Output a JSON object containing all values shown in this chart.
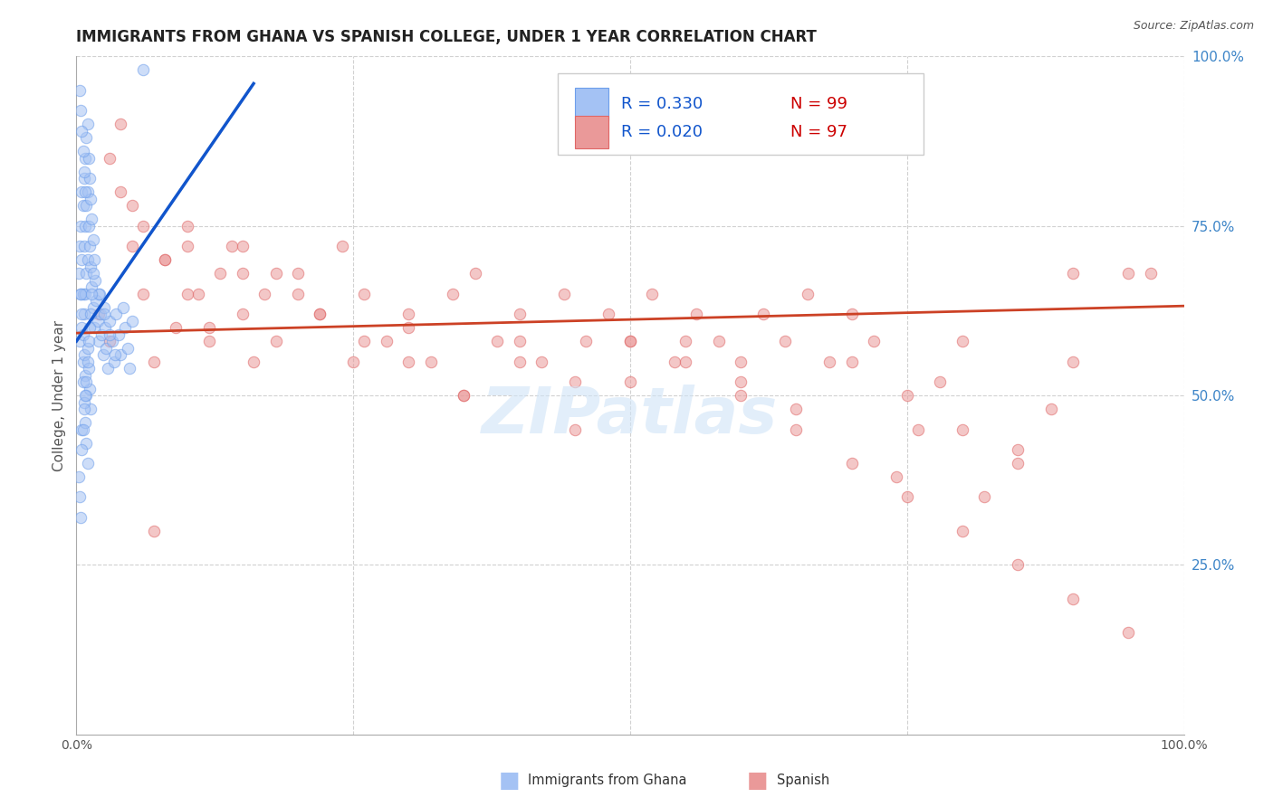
{
  "title": "IMMIGRANTS FROM GHANA VS SPANISH COLLEGE, UNDER 1 YEAR CORRELATION CHART",
  "source": "Source: ZipAtlas.com",
  "ylabel": "College, Under 1 year",
  "legend_blue_label": "Immigrants from Ghana",
  "legend_pink_label": "Spanish",
  "legend_R_blue": "R = 0.330",
  "legend_N_blue": "N = 99",
  "legend_R_pink": "R = 0.020",
  "legend_N_pink": "N = 97",
  "blue_color": "#a4c2f4",
  "blue_edge_color": "#6d9eeb",
  "pink_color": "#ea9999",
  "pink_edge_color": "#e06666",
  "blue_line_color": "#1155cc",
  "pink_line_color": "#cc4125",
  "dash_color": "#999999",
  "watermark": "ZIPatlas",
  "background_color": "#ffffff",
  "grid_color": "#cccccc",
  "title_fontsize": 12,
  "axis_fontsize": 10,
  "legend_fontsize": 13,
  "marker_size": 80,
  "marker_alpha": 0.55,
  "xmin": 0.0,
  "xmax": 1.0,
  "ymin": 0.0,
  "ymax": 1.0,
  "N_blue": 99,
  "N_pink": 97,
  "R_blue": 0.33,
  "R_pink": 0.02,
  "blue_x": [
    0.002,
    0.003,
    0.004,
    0.004,
    0.005,
    0.005,
    0.005,
    0.006,
    0.006,
    0.006,
    0.007,
    0.007,
    0.007,
    0.008,
    0.008,
    0.008,
    0.009,
    0.009,
    0.009,
    0.01,
    0.01,
    0.01,
    0.011,
    0.011,
    0.012,
    0.012,
    0.013,
    0.013,
    0.014,
    0.014,
    0.015,
    0.015,
    0.016,
    0.016,
    0.017,
    0.018,
    0.019,
    0.02,
    0.021,
    0.022,
    0.023,
    0.024,
    0.025,
    0.026,
    0.027,
    0.028,
    0.03,
    0.032,
    0.034,
    0.036,
    0.038,
    0.04,
    0.042,
    0.044,
    0.046,
    0.048,
    0.05,
    0.003,
    0.004,
    0.005,
    0.006,
    0.007,
    0.008,
    0.009,
    0.01,
    0.011,
    0.012,
    0.013,
    0.005,
    0.006,
    0.007,
    0.008,
    0.009,
    0.01,
    0.003,
    0.004,
    0.005,
    0.006,
    0.007,
    0.008,
    0.015,
    0.02,
    0.025,
    0.03,
    0.035,
    0.002,
    0.003,
    0.004,
    0.005,
    0.006,
    0.007,
    0.008,
    0.009,
    0.01,
    0.011,
    0.012,
    0.013,
    0.014,
    0.06
  ],
  "blue_y": [
    0.68,
    0.72,
    0.75,
    0.65,
    0.8,
    0.7,
    0.6,
    0.78,
    0.65,
    0.55,
    0.82,
    0.72,
    0.62,
    0.85,
    0.75,
    0.65,
    0.88,
    0.78,
    0.68,
    0.9,
    0.8,
    0.7,
    0.85,
    0.75,
    0.82,
    0.72,
    0.79,
    0.69,
    0.76,
    0.66,
    0.73,
    0.63,
    0.7,
    0.6,
    0.67,
    0.64,
    0.61,
    0.58,
    0.65,
    0.62,
    0.59,
    0.56,
    0.63,
    0.6,
    0.57,
    0.54,
    0.61,
    0.58,
    0.55,
    0.62,
    0.59,
    0.56,
    0.63,
    0.6,
    0.57,
    0.54,
    0.61,
    0.58,
    0.65,
    0.62,
    0.59,
    0.56,
    0.53,
    0.5,
    0.57,
    0.54,
    0.51,
    0.48,
    0.45,
    0.52,
    0.49,
    0.46,
    0.43,
    0.4,
    0.95,
    0.92,
    0.89,
    0.86,
    0.83,
    0.8,
    0.68,
    0.65,
    0.62,
    0.59,
    0.56,
    0.38,
    0.35,
    0.32,
    0.42,
    0.45,
    0.48,
    0.5,
    0.52,
    0.55,
    0.58,
    0.6,
    0.62,
    0.65,
    0.98
  ],
  "pink_x": [
    0.02,
    0.03,
    0.04,
    0.05,
    0.06,
    0.07,
    0.08,
    0.09,
    0.1,
    0.11,
    0.12,
    0.13,
    0.14,
    0.15,
    0.16,
    0.17,
    0.18,
    0.2,
    0.22,
    0.24,
    0.26,
    0.28,
    0.3,
    0.32,
    0.34,
    0.36,
    0.38,
    0.4,
    0.42,
    0.44,
    0.46,
    0.48,
    0.5,
    0.52,
    0.54,
    0.56,
    0.58,
    0.6,
    0.62,
    0.64,
    0.66,
    0.68,
    0.7,
    0.72,
    0.74,
    0.76,
    0.78,
    0.8,
    0.82,
    0.85,
    0.88,
    0.9,
    0.04,
    0.06,
    0.08,
    0.1,
    0.12,
    0.15,
    0.18,
    0.22,
    0.26,
    0.3,
    0.35,
    0.4,
    0.45,
    0.5,
    0.55,
    0.6,
    0.65,
    0.7,
    0.75,
    0.8,
    0.85,
    0.9,
    0.05,
    0.1,
    0.15,
    0.2,
    0.25,
    0.3,
    0.35,
    0.4,
    0.45,
    0.5,
    0.55,
    0.6,
    0.65,
    0.7,
    0.75,
    0.8,
    0.85,
    0.9,
    0.95,
    0.03,
    0.07,
    0.95,
    0.97
  ],
  "pink_y": [
    0.62,
    0.58,
    0.9,
    0.72,
    0.65,
    0.55,
    0.7,
    0.6,
    0.75,
    0.65,
    0.58,
    0.68,
    0.72,
    0.62,
    0.55,
    0.65,
    0.58,
    0.68,
    0.62,
    0.72,
    0.65,
    0.58,
    0.62,
    0.55,
    0.65,
    0.68,
    0.58,
    0.62,
    0.55,
    0.65,
    0.58,
    0.62,
    0.58,
    0.65,
    0.55,
    0.62,
    0.58,
    0.55,
    0.62,
    0.58,
    0.65,
    0.55,
    0.62,
    0.58,
    0.38,
    0.45,
    0.52,
    0.58,
    0.35,
    0.42,
    0.48,
    0.55,
    0.8,
    0.75,
    0.7,
    0.65,
    0.6,
    0.72,
    0.68,
    0.62,
    0.58,
    0.55,
    0.5,
    0.58,
    0.52,
    0.58,
    0.55,
    0.52,
    0.48,
    0.55,
    0.5,
    0.45,
    0.4,
    0.68,
    0.78,
    0.72,
    0.68,
    0.65,
    0.55,
    0.6,
    0.5,
    0.55,
    0.45,
    0.52,
    0.58,
    0.5,
    0.45,
    0.4,
    0.35,
    0.3,
    0.25,
    0.2,
    0.68,
    0.85,
    0.3,
    0.15,
    0.68
  ]
}
